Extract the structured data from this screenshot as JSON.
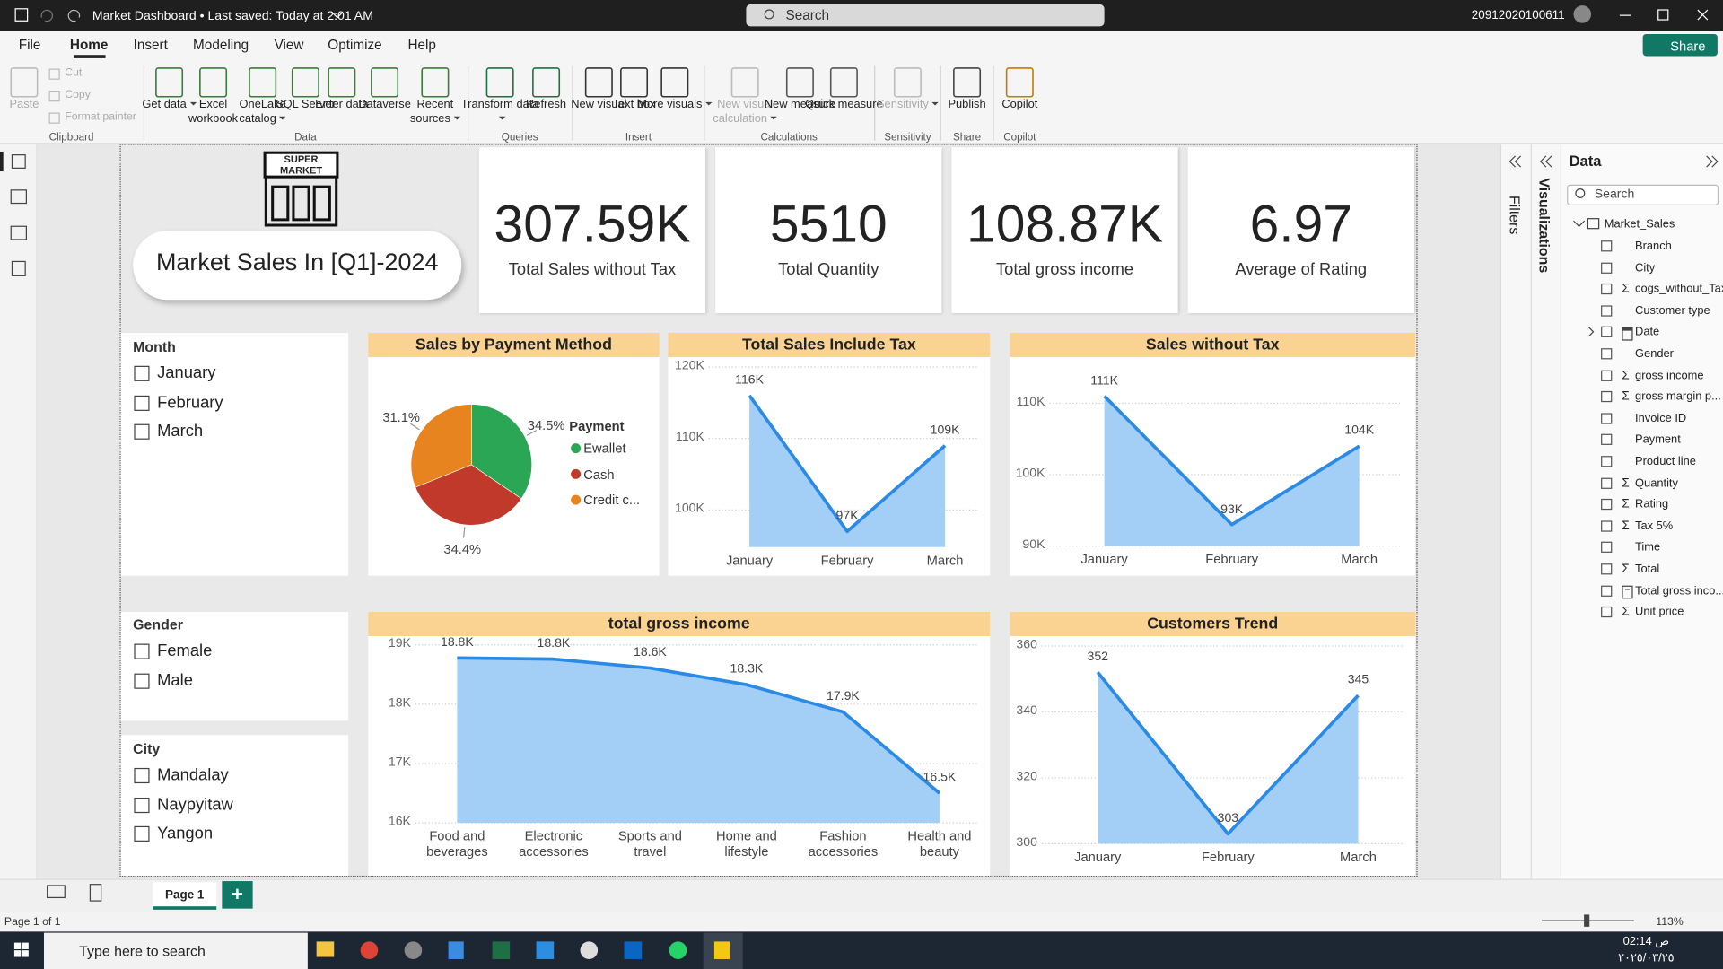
{
  "titlebar": {
    "title": "Market Dashboard • Last saved: Today at 2:01 AM",
    "search": "Search",
    "user": "20912020100611"
  },
  "menu": [
    "File",
    "Home",
    "Insert",
    "Modeling",
    "View",
    "Optimize",
    "Help"
  ],
  "share": "Share",
  "ribbon": [
    {
      "group": "Clipboard",
      "items": [
        "Paste",
        "Cut",
        "Copy",
        "Format painter"
      ]
    },
    {
      "group": "Data",
      "items": [
        "Get data",
        "Excel workbook",
        "OneLake catalog",
        "SQL Server",
        "Enter data",
        "Dataverse",
        "Recent sources"
      ]
    },
    {
      "group": "Queries",
      "items": [
        "Transform data",
        "Refresh"
      ]
    },
    {
      "group": "Insert",
      "items": [
        "New visual",
        "Text box",
        "More visuals"
      ]
    },
    {
      "group": "Calculations",
      "items": [
        "New visual calculation",
        "New measure",
        "Quick measure"
      ]
    },
    {
      "group": "Sensitivity",
      "items": [
        "Sensitivity"
      ]
    },
    {
      "group": "Share",
      "items": [
        "Publish"
      ]
    },
    {
      "group": "Copilot",
      "items": [
        "Copilot"
      ]
    }
  ],
  "report": {
    "logo": [
      "SUPER",
      "MARKET"
    ],
    "title": "Market Sales In [Q1]-2024",
    "cards": [
      {
        "value": "307.59K",
        "label": "Total Sales without Tax"
      },
      {
        "value": "5510",
        "label": "Total Quantity"
      },
      {
        "value": "108.87K",
        "label": "Total gross income"
      },
      {
        "value": "6.97",
        "label": "Average of Rating"
      }
    ],
    "slicers": [
      {
        "title": "Month",
        "items": [
          "January",
          "February",
          "March"
        ]
      },
      {
        "title": "Gender",
        "items": [
          "Female",
          "Male"
        ]
      },
      {
        "title": "City",
        "items": [
          "Mandalay",
          "Naypyitaw",
          "Yangon"
        ]
      }
    ],
    "charts": [
      {
        "type": "pie",
        "title": "Sales by Payment Method",
        "legend_title": "Payment",
        "categories": [
          "Ewallet",
          "Cash",
          "Credit c..."
        ],
        "values": [
          34.5,
          34.4,
          31.1
        ],
        "value_labels": [
          "34.5%",
          "34.4%",
          "31.1%"
        ],
        "colors": [
          "#2aa655",
          "#c0392b",
          "#e8841f"
        ]
      },
      {
        "type": "area",
        "title": "Total Sales Include Tax",
        "categories": [
          "January",
          "February",
          "March"
        ],
        "values": [
          116000,
          97000,
          109000
        ],
        "value_labels": [
          "116K",
          "97K",
          "109K"
        ],
        "ylim": [
          94800,
          120000
        ],
        "yticks": [
          {
            "value": 100000,
            "label": "100K"
          },
          {
            "value": 110000,
            "label": "110K"
          },
          {
            "value": 120000,
            "label": "120K"
          }
        ],
        "color": "#2b8ae6",
        "fill": "#a3cff7",
        "grid": true
      },
      {
        "type": "area",
        "title": "Sales without Tax",
        "categories": [
          "January",
          "February",
          "March"
        ],
        "values": [
          111000,
          93000,
          104000
        ],
        "value_labels": [
          "111K",
          "93K",
          "104K"
        ],
        "ylim": [
          90000,
          115700
        ],
        "yticks": [
          {
            "value": 90000,
            "label": "90K"
          },
          {
            "value": 100000,
            "label": "100K"
          },
          {
            "value": 110000,
            "label": "110K"
          }
        ],
        "color": "#2b8ae6",
        "fill": "#a3cff7",
        "grid": true
      },
      {
        "type": "area",
        "title": "total gross income",
        "categories": [
          "Food and beverages",
          "Electronic accessories",
          "Sports and travel",
          "Home and lifestyle",
          "Fashion accessories",
          "Health and beauty"
        ],
        "values": [
          18780,
          18760,
          18610,
          18330,
          17870,
          16500
        ],
        "value_labels": [
          "18.8K",
          "18.8K",
          "18.6K",
          "18.3K",
          "17.9K",
          "16.5K"
        ],
        "ylim": [
          16000,
          19000
        ],
        "yticks": [
          {
            "value": 16000,
            "label": "16K"
          },
          {
            "value": 17000,
            "label": "17K"
          },
          {
            "value": 18000,
            "label": "18K"
          },
          {
            "value": 19000,
            "label": "19K"
          }
        ],
        "color": "#2b8ae6",
        "fill": "#a3cff7",
        "grid": true
      },
      {
        "type": "area",
        "title": "Customers Trend",
        "categories": [
          "January",
          "February",
          "March"
        ],
        "values": [
          352,
          303,
          345
        ],
        "ylim": [
          300,
          360
        ],
        "yticks": [
          300,
          320,
          340,
          360
        ],
        "color": "#2b8ae6",
        "fill": "#a3cff7",
        "grid": true
      }
    ]
  },
  "panes": {
    "filters": "Filters",
    "visualizations": "Visualizations",
    "data": {
      "title": "Data",
      "search": "Search",
      "table": "Market_Sales",
      "fields": [
        {
          "name": "Branch"
        },
        {
          "name": "City"
        },
        {
          "name": "cogs_without_Tax",
          "icon": "sum"
        },
        {
          "name": "Customer type"
        },
        {
          "name": "Date",
          "icon": "calendar"
        },
        {
          "name": "Gender"
        },
        {
          "name": "gross income",
          "icon": "sum"
        },
        {
          "name": "gross margin p...",
          "icon": "sum"
        },
        {
          "name": "Invoice ID"
        },
        {
          "name": "Payment"
        },
        {
          "name": "Product line"
        },
        {
          "name": "Quantity",
          "icon": "sum"
        },
        {
          "name": "Rating",
          "icon": "sum"
        },
        {
          "name": "Tax 5%",
          "icon": "sum"
        },
        {
          "name": "Time"
        },
        {
          "name": "Total",
          "icon": "sum"
        },
        {
          "name": "Total gross inco...",
          "icon": "measure"
        },
        {
          "name": "Unit price",
          "icon": "sum"
        }
      ]
    }
  },
  "status": {
    "page_tab": "Page 1",
    "page_count": "Page 1 of 1",
    "zoom": "113%"
  },
  "taskbar": {
    "search": "Type here to search",
    "time": "02:14 ص",
    "date": "٢٠٢٥/٠٣/٢٥"
  }
}
